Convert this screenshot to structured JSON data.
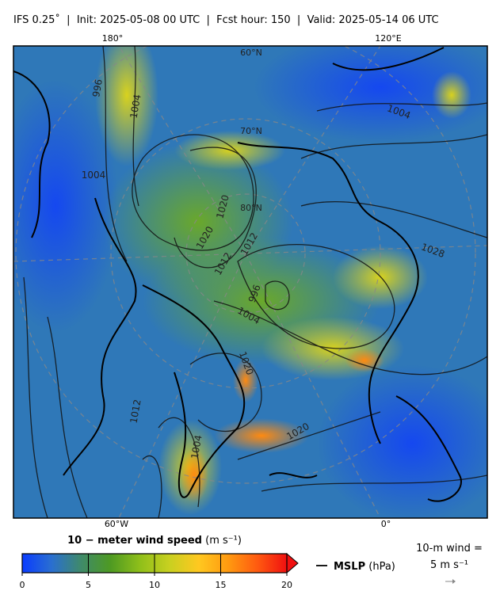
{
  "header": {
    "title": "IFS 0.25˚  |  Init: 2025-05-08 00 UTC  |  Fcst hour: 150  |  Valid: 2025-05-14 06 UTC"
  },
  "map": {
    "top_labels": [
      "180°",
      "120°E"
    ],
    "bottom_labels": [
      "60°W",
      "0°"
    ],
    "lat_labels": [
      "60°N",
      "70°N",
      "80°N"
    ],
    "contour_labels": [
      "996",
      "1004",
      "1004",
      "1020",
      "1020",
      "1012",
      "1012",
      "996",
      "1004",
      "1020",
      "1020",
      "1004",
      "1028",
      "1004",
      "1012"
    ]
  },
  "colorbar": {
    "title": "10 − meter wind speed",
    "units": "(m s⁻¹)",
    "min": 0,
    "max": 20,
    "ticks": [
      0,
      5,
      10,
      15,
      20
    ],
    "colors": [
      "#0a3cff",
      "#2a6fd0",
      "#3f8a6a",
      "#4e9a22",
      "#8fbf1a",
      "#c8d020",
      "#ffc820",
      "#ff9a10",
      "#ff5a10",
      "#f01010"
    ]
  },
  "legend": {
    "contour": "MSLP",
    "contour_units": "(hPa)",
    "wind_label": "10-m wind =",
    "wind_value": "5 m s⁻¹"
  }
}
